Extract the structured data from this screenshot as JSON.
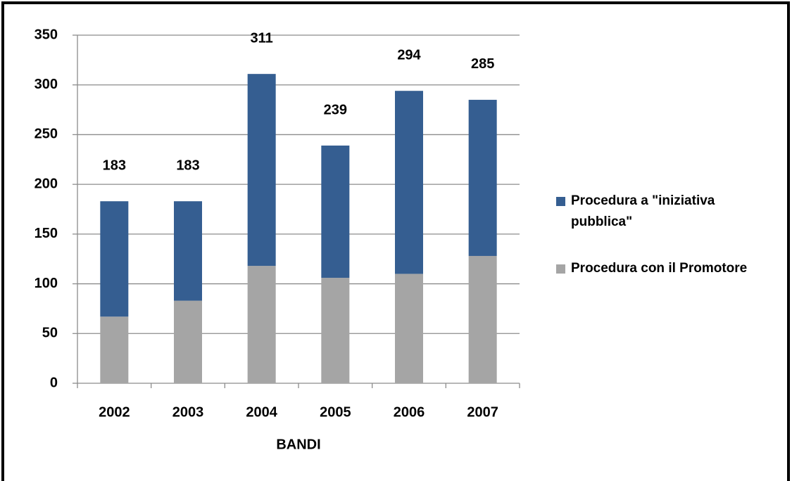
{
  "chart_data": {
    "type": "stacked-bar",
    "x_label": "BANDI",
    "categories": [
      "2002",
      "2003",
      "2004",
      "2005",
      "2006",
      "2007"
    ],
    "series": [
      {
        "name": "Procedura con il Promotore",
        "color": "#a5a5a5",
        "values": [
          67,
          83,
          118,
          106,
          110,
          128
        ]
      },
      {
        "name": "Procedura a \"iniziativa pubblica\"",
        "color": "#355e91",
        "values": [
          116,
          100,
          193,
          133,
          184,
          157
        ]
      }
    ],
    "totals": [
      183,
      183,
      311,
      239,
      294,
      285
    ],
    "ylim": [
      0,
      350
    ],
    "yticks": [
      0,
      50,
      100,
      150,
      200,
      250,
      300,
      350
    ],
    "grid": true,
    "legend": "right"
  }
}
